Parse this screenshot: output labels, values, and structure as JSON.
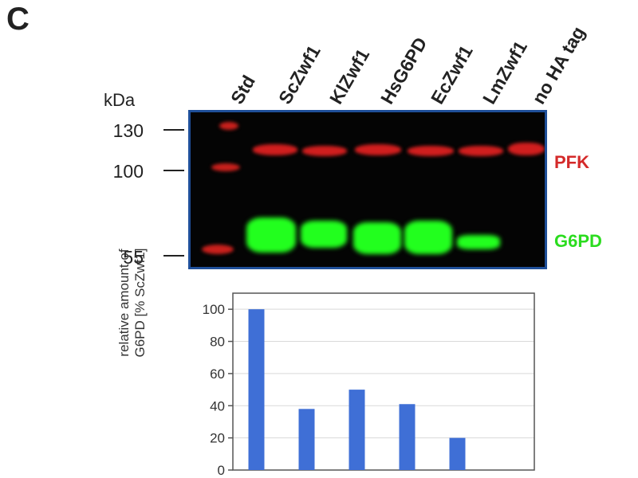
{
  "panel": {
    "letter": "C"
  },
  "lanes": [
    "Std",
    "ScZwf1",
    "KlZwf1",
    "HsG6PD",
    "EcZwf1",
    "LmZwf1",
    "no HA tag"
  ],
  "blot": {
    "unit_label": "kDa",
    "markers": [
      "130",
      "100",
      "55"
    ],
    "band_labels": {
      "pfk": {
        "text": "PFK",
        "color": "#d42a2a"
      },
      "g6pd": {
        "text": "G6PD",
        "color": "#2bdc1f"
      }
    },
    "colors": {
      "background": "#040404",
      "border": "#1f4f99",
      "red_band": "#d01e1e",
      "green_band": "#22ff1e"
    }
  },
  "chart_data": {
    "type": "bar",
    "categories": [
      "ScZwf1",
      "KlZwf1",
      "HsG6PD",
      "EcZwf1",
      "LmZwf1",
      "no HA tag"
    ],
    "values": [
      100,
      38,
      50,
      41,
      20,
      0
    ],
    "ylabel_line1": "relative amount of",
    "ylabel_line2": "G6PD  [% ScZwf1]",
    "ylim": [
      0,
      110
    ],
    "yticks": [
      "0",
      "20",
      "40",
      "60",
      "80",
      "100"
    ],
    "grid": true,
    "bar_color": "#3f6fd6",
    "grid_color": "#d9d9d9"
  }
}
